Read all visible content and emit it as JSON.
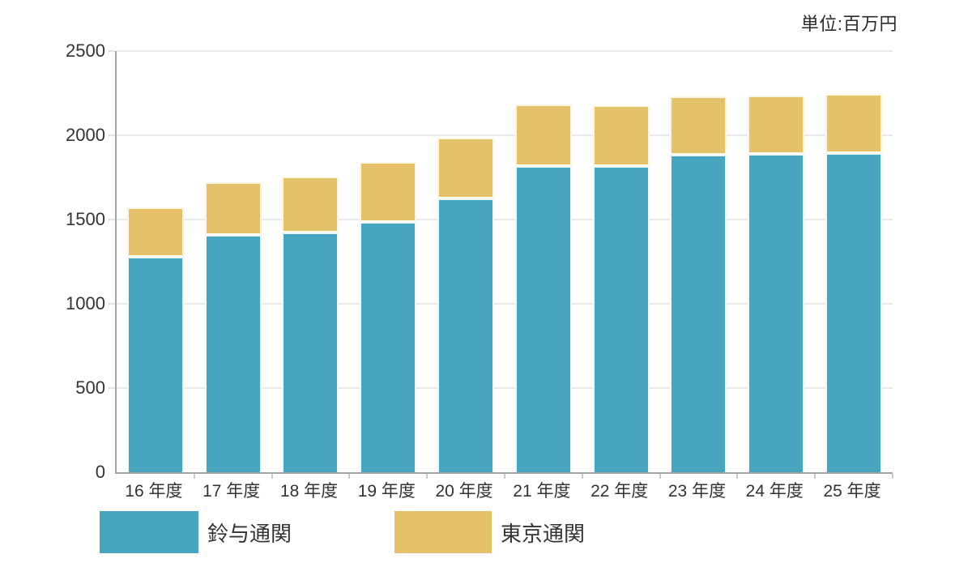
{
  "unit_label": "単位:百万円",
  "chart_data": {
    "type": "bar",
    "stacked": true,
    "unit_annotation": "単位:百万円",
    "categories": [
      "16 年度",
      "17 年度",
      "18 年度",
      "19 年度",
      "20 年度",
      "21 年度",
      "22 年度",
      "23 年度",
      "24 年度",
      "25 年度"
    ],
    "series": [
      {
        "name": "鈴与通関",
        "color": "#48a5bf",
        "values": [
          1280,
          1410,
          1425,
          1485,
          1625,
          1815,
          1815,
          1885,
          1890,
          1895
        ]
      },
      {
        "name": "東京通関",
        "color": "#e5c169",
        "values": [
          290,
          310,
          330,
          355,
          360,
          370,
          365,
          345,
          345,
          350
        ]
      }
    ],
    "totals": [
      1570,
      1720,
      1755,
      1840,
      1985,
      2185,
      2180,
      2230,
      2235,
      2245
    ],
    "xlabel": "",
    "ylabel": "",
    "ylim": [
      0,
      2500
    ],
    "yticks": [
      0,
      500,
      1000,
      1500,
      2000,
      2500
    ],
    "grid": true,
    "legend_position": "bottom",
    "colors": {
      "axis_line": "#a3a3a3",
      "gridline": "#e9e9e9",
      "text": "#333333",
      "background": "#ffffff"
    }
  }
}
